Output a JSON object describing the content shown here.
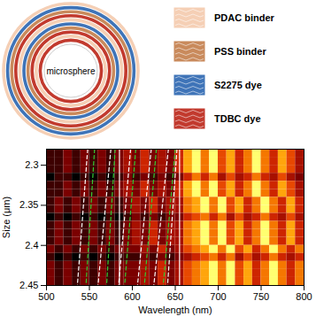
{
  "chart_data": {
    "type": "heatmap",
    "x_label": "Wavelength (nm)",
    "y_label": "Size (μm)",
    "xlim": [
      500,
      800
    ],
    "xticks": [
      500,
      550,
      600,
      650,
      700,
      750,
      800
    ],
    "ylim": [
      2.28,
      2.45
    ],
    "yticks": [
      2.3,
      2.35,
      2.4,
      2.45
    ],
    "cells": {
      "x_edges": [
        500,
        510,
        520,
        530,
        540,
        550,
        560,
        570,
        580,
        590,
        600,
        610,
        620,
        630,
        640,
        650,
        660,
        670,
        680,
        690,
        700,
        710,
        720,
        730,
        740,
        750,
        760,
        770,
        780,
        790,
        800
      ],
      "y_edges": [
        2.28,
        2.29,
        2.3,
        2.31,
        2.32,
        2.33,
        2.34,
        2.35,
        2.36,
        2.37,
        2.38,
        2.39,
        2.4,
        2.41,
        2.42,
        2.43,
        2.44,
        2.45
      ],
      "values": [
        [
          1,
          1,
          2,
          1,
          2,
          1,
          2,
          1,
          2,
          3,
          2,
          4,
          2,
          3,
          2,
          4,
          7,
          9,
          6,
          9,
          5,
          7,
          4,
          6,
          9,
          6,
          4,
          7,
          5,
          3
        ],
        [
          1,
          1,
          2,
          1,
          2,
          1,
          2,
          1,
          2,
          3,
          2,
          4,
          2,
          3,
          2,
          4,
          7,
          9,
          6,
          9,
          5,
          7,
          4,
          6,
          9,
          6,
          4,
          7,
          5,
          3
        ],
        [
          1,
          1,
          2,
          1,
          2,
          1,
          2,
          1,
          2,
          3,
          2,
          4,
          2,
          3,
          2,
          4,
          7,
          9,
          6,
          9,
          5,
          7,
          4,
          6,
          9,
          6,
          4,
          7,
          5,
          3
        ],
        [
          0,
          1,
          1,
          0,
          1,
          0,
          1,
          0,
          1,
          2,
          1,
          2,
          1,
          2,
          1,
          2,
          4,
          6,
          4,
          6,
          3,
          5,
          3,
          4,
          6,
          4,
          3,
          5,
          3,
          2
        ],
        [
          1,
          1,
          2,
          1,
          2,
          1,
          2,
          1,
          2,
          3,
          2,
          4,
          2,
          3,
          2,
          4,
          7,
          9,
          6,
          9,
          5,
          7,
          4,
          6,
          9,
          6,
          4,
          7,
          5,
          3
        ],
        [
          1,
          1,
          2,
          1,
          2,
          1,
          2,
          1,
          2,
          3,
          2,
          4,
          2,
          3,
          2,
          4,
          7,
          9,
          6,
          9,
          5,
          7,
          4,
          6,
          9,
          6,
          4,
          7,
          5,
          3
        ],
        [
          1,
          2,
          1,
          2,
          1,
          2,
          1,
          2,
          1,
          2,
          3,
          2,
          4,
          2,
          3,
          3,
          6,
          7,
          9,
          6,
          9,
          5,
          7,
          4,
          6,
          9,
          6,
          4,
          7,
          4
        ],
        [
          1,
          2,
          1,
          2,
          1,
          2,
          1,
          2,
          1,
          2,
          3,
          2,
          4,
          2,
          3,
          3,
          6,
          7,
          9,
          6,
          9,
          5,
          7,
          4,
          6,
          9,
          6,
          4,
          7,
          4
        ],
        [
          0,
          1,
          0,
          1,
          0,
          1,
          0,
          1,
          0,
          1,
          2,
          1,
          2,
          1,
          2,
          2,
          4,
          5,
          6,
          4,
          6,
          3,
          5,
          3,
          4,
          6,
          4,
          3,
          5,
          3
        ],
        [
          1,
          2,
          1,
          2,
          1,
          2,
          1,
          2,
          1,
          2,
          3,
          2,
          4,
          2,
          3,
          3,
          6,
          7,
          9,
          6,
          9,
          5,
          7,
          4,
          6,
          9,
          6,
          4,
          7,
          4
        ],
        [
          1,
          2,
          1,
          2,
          1,
          2,
          1,
          2,
          1,
          2,
          3,
          2,
          4,
          2,
          3,
          3,
          6,
          7,
          9,
          6,
          9,
          5,
          7,
          4,
          6,
          9,
          6,
          4,
          7,
          4
        ],
        [
          1,
          2,
          1,
          2,
          1,
          2,
          1,
          2,
          1,
          2,
          3,
          2,
          4,
          2,
          3,
          3,
          6,
          7,
          9,
          6,
          9,
          5,
          7,
          4,
          6,
          9,
          6,
          4,
          7,
          4
        ],
        [
          2,
          1,
          2,
          1,
          2,
          1,
          2,
          1,
          2,
          2,
          2,
          3,
          2,
          4,
          2,
          3,
          5,
          6,
          7,
          9,
          6,
          9,
          5,
          7,
          4,
          6,
          9,
          6,
          4,
          6
        ],
        [
          1,
          0,
          1,
          0,
          1,
          0,
          1,
          0,
          1,
          1,
          1,
          2,
          1,
          2,
          1,
          2,
          3,
          4,
          5,
          6,
          4,
          6,
          3,
          5,
          3,
          4,
          6,
          4,
          3,
          4
        ],
        [
          2,
          1,
          2,
          1,
          2,
          1,
          2,
          1,
          2,
          2,
          2,
          3,
          2,
          4,
          2,
          3,
          5,
          6,
          7,
          9,
          6,
          9,
          5,
          7,
          4,
          6,
          9,
          6,
          4,
          6
        ],
        [
          2,
          1,
          2,
          1,
          2,
          1,
          2,
          1,
          2,
          2,
          2,
          3,
          2,
          4,
          2,
          3,
          5,
          6,
          7,
          9,
          6,
          9,
          5,
          7,
          4,
          6,
          9,
          6,
          4,
          6
        ],
        [
          2,
          1,
          2,
          1,
          2,
          1,
          2,
          1,
          2,
          2,
          2,
          3,
          2,
          4,
          2,
          3,
          5,
          6,
          7,
          9,
          6,
          9,
          5,
          7,
          4,
          6,
          9,
          6,
          4,
          6
        ]
      ]
    },
    "series": [
      {
        "type": "line",
        "color": "#ffffff",
        "line_style": "solid",
        "x": [
          585,
          585
        ],
        "y": [
          2.28,
          2.45
        ]
      },
      {
        "type": "line",
        "color": "#ffffff",
        "line_style": "solid",
        "x": [
          655,
          655
        ],
        "y": [
          2.28,
          2.45
        ]
      },
      {
        "type": "line",
        "color": "#ffffff",
        "line_style": "dashed",
        "x": [
          548,
          536
        ],
        "y": [
          2.28,
          2.45
        ]
      },
      {
        "type": "line",
        "color": "#ffffff",
        "line_style": "dashed",
        "x": [
          575,
          560
        ],
        "y": [
          2.28,
          2.45
        ]
      },
      {
        "type": "line",
        "color": "#ffffff",
        "line_style": "dashed",
        "x": [
          598,
          584
        ],
        "y": [
          2.28,
          2.45
        ]
      },
      {
        "type": "line",
        "color": "#ffffff",
        "line_style": "dashed",
        "x": [
          622,
          606
        ],
        "y": [
          2.28,
          2.45
        ]
      },
      {
        "type": "line",
        "color": "#ffffff",
        "line_style": "dashed",
        "x": [
          642,
          625
        ],
        "y": [
          2.28,
          2.45
        ]
      },
      {
        "type": "line",
        "color": "#ffffff",
        "line_style": "dashed",
        "x": [
          652,
          641
        ],
        "y": [
          2.28,
          2.45
        ]
      },
      {
        "type": "line",
        "color": "#33cc33",
        "line_style": "dashed",
        "x": [
          556,
          546
        ],
        "y": [
          2.28,
          2.45
        ]
      },
      {
        "type": "line",
        "color": "#33cc33",
        "line_style": "dashed",
        "x": [
          580,
          570
        ],
        "y": [
          2.28,
          2.45
        ]
      },
      {
        "type": "line",
        "color": "#33cc33",
        "line_style": "dashed",
        "x": [
          604,
          591
        ],
        "y": [
          2.28,
          2.45
        ]
      },
      {
        "type": "line",
        "color": "#33cc33",
        "line_style": "dashed",
        "x": [
          628,
          614
        ],
        "y": [
          2.28,
          2.45
        ]
      },
      {
        "type": "line",
        "color": "#33cc33",
        "line_style": "dashed",
        "x": [
          650,
          636
        ],
        "y": [
          2.28,
          2.45
        ]
      }
    ]
  },
  "diagram": {
    "center_label": "microsphere",
    "legend": [
      {
        "label": "PDAC binder",
        "color": "#f5cfb5"
      },
      {
        "label": "PSS binder",
        "color": "#c98a5c"
      },
      {
        "label": "S2275 dye",
        "color": "#3f74b8"
      },
      {
        "label": "TDBC dye",
        "color": "#c23a2e"
      }
    ],
    "layers": [
      "PDAC binder",
      "S2275 dye",
      "PSS binder",
      "TDBC dye",
      "PDAC binder",
      "S2275 dye",
      "PSS binder",
      "TDBC dye",
      "PDAC binder",
      "TDBC dye"
    ]
  }
}
